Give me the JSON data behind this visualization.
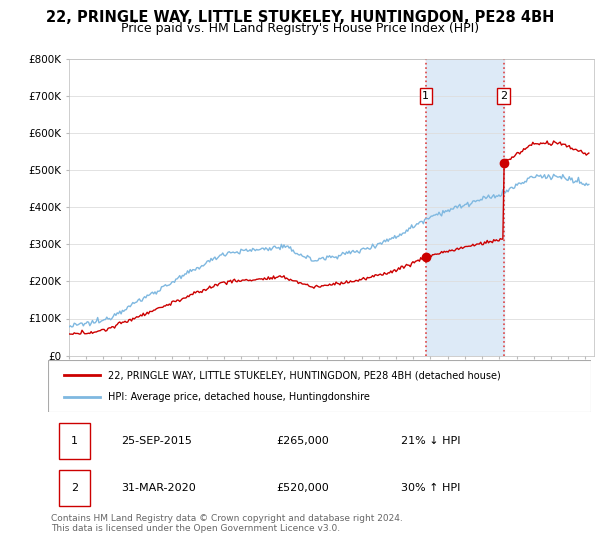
{
  "title": "22, PRINGLE WAY, LITTLE STUKELEY, HUNTINGDON, PE28 4BH",
  "subtitle": "Price paid vs. HM Land Registry's House Price Index (HPI)",
  "title_fontsize": 10.5,
  "subtitle_fontsize": 9,
  "bg_color": "#ffffff",
  "grid_color": "#dddddd",
  "highlight_bg_color": "#ddeaf7",
  "sale1_date_num": 2015.73,
  "sale2_date_num": 2020.25,
  "sale1_price": 265000,
  "sale2_price": 520000,
  "hpi_line_color": "#7fb8e0",
  "price_line_color": "#cc0000",
  "ylim_min": 0,
  "ylim_max": 800000,
  "xlim_min": 1995,
  "xlim_max": 2025.5,
  "legend1_label": "22, PRINGLE WAY, LITTLE STUKELEY, HUNTINGDON, PE28 4BH (detached house)",
  "legend2_label": "HPI: Average price, detached house, Huntingdonshire",
  "table_row1": [
    "1",
    "25-SEP-2015",
    "£265,000",
    "21% ↓ HPI"
  ],
  "table_row2": [
    "2",
    "31-MAR-2020",
    "£520,000",
    "30% ↑ HPI"
  ],
  "footnote": "Contains HM Land Registry data © Crown copyright and database right 2024.\nThis data is licensed under the Open Government Licence v3.0.",
  "yticks": [
    0,
    100000,
    200000,
    300000,
    400000,
    500000,
    600000,
    700000,
    800000
  ],
  "ytick_labels": [
    "£0",
    "£100K",
    "£200K",
    "£300K",
    "£400K",
    "£500K",
    "£600K",
    "£700K",
    "£800K"
  ]
}
